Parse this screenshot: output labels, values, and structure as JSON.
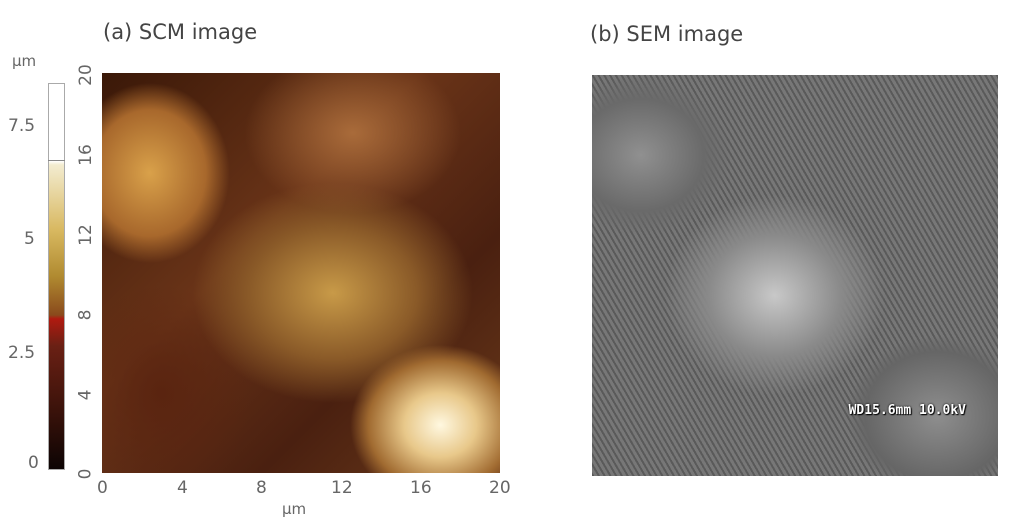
{
  "panel_a": {
    "title": "(a) SCM image",
    "colorbar": {
      "unit": "µm",
      "ticks": [
        "7.5",
        "5",
        "2.5",
        "0"
      ],
      "range": [
        0,
        8.5
      ],
      "colormap": "afm-hot brown"
    },
    "y_ticks": [
      "0",
      "4",
      "8",
      "12",
      "16",
      "20"
    ],
    "x_ticks": [
      "0",
      "4",
      "8",
      "12",
      "16",
      "20"
    ],
    "x_label": "µm"
  },
  "panel_b": {
    "title": "(b) SEM image",
    "info_label": "WD15.6mm 10.0kV"
  }
}
